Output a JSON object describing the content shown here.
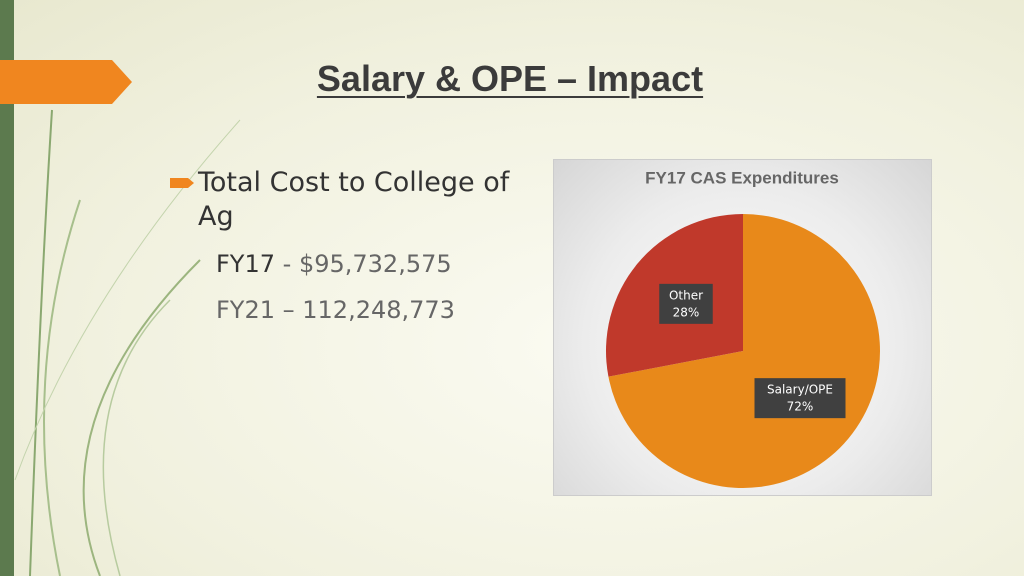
{
  "slide": {
    "title": "Salary & OPE – Impact",
    "bullet": "Total Cost to College of Ag",
    "sub_items": [
      {
        "label": "FY17",
        "amount": "- $95,732,575"
      },
      {
        "label": "FY21 – 112,248,773"
      }
    ]
  },
  "chart_data": {
    "type": "pie",
    "title": "FY17 CAS Expenditures",
    "categories": [
      "Salary/OPE",
      "Other"
    ],
    "values": [
      72,
      28
    ],
    "value_labels": [
      "72%",
      "28%"
    ],
    "colors": [
      "#e8891a",
      "#c0392b"
    ]
  }
}
